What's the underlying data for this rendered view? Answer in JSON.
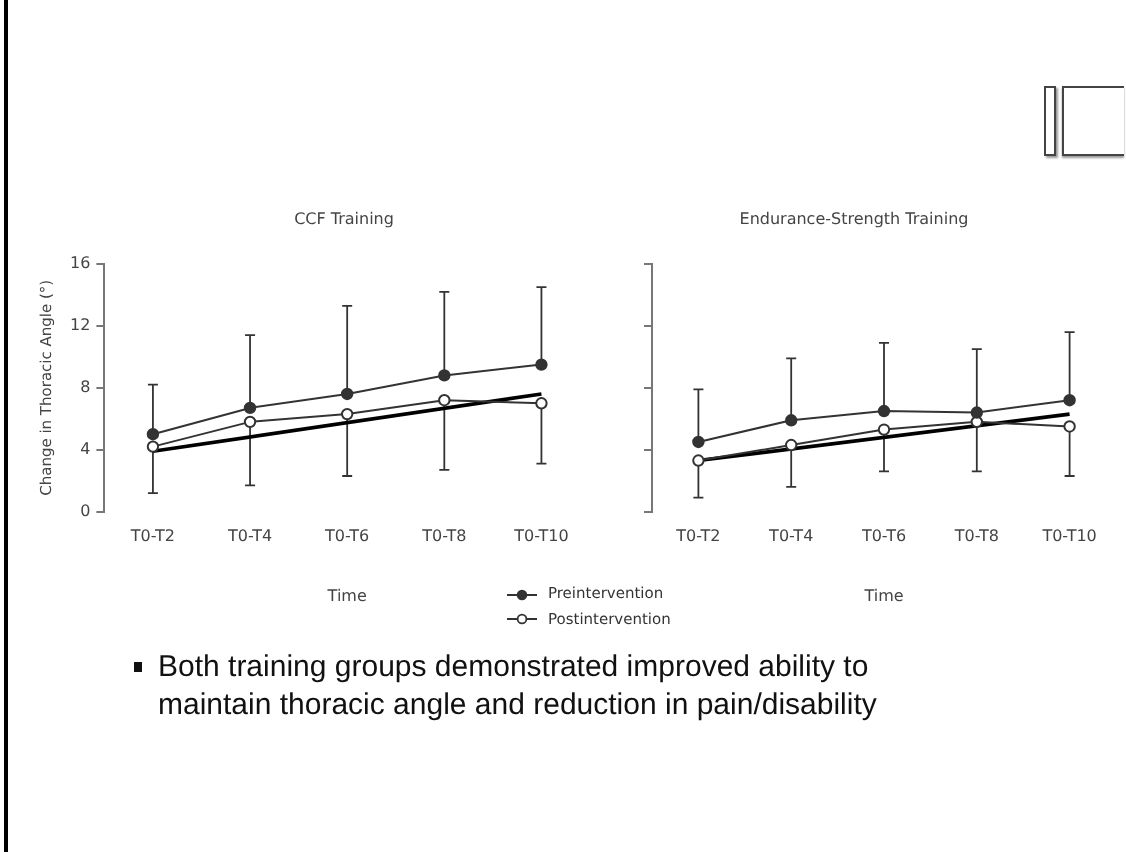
{
  "chart_data": [
    {
      "type": "line",
      "title": "CCF Training",
      "xlabel": "Time",
      "ylabel": "Change in Thoracic Angle (°)",
      "categories": [
        "T0-T2",
        "T0-T4",
        "T0-T6",
        "T0-T8",
        "T0-T10"
      ],
      "ylim": [
        0,
        16
      ],
      "yticks": [
        0,
        4,
        8,
        12,
        16
      ],
      "grid": false,
      "legend": "bottom right",
      "marker": "circle",
      "series": [
        {
          "name": "Preintervention",
          "color": "#333333",
          "values": [
            5.0,
            6.7,
            7.6,
            8.8,
            9.5
          ],
          "errors": [
            [
              5.0,
              8.2
            ],
            [
              6.7,
              11.4
            ],
            [
              7.6,
              13.3
            ],
            [
              8.8,
              14.2
            ],
            [
              9.5,
              14.5
            ]
          ]
        },
        {
          "name": "Postintervention",
          "color": "#333333",
          "colors": [
            "#ffffff",
            "#ffffff",
            "#ffffff",
            "#ffffff",
            "#ffffff"
          ],
          "values": [
            4.2,
            5.8,
            6.3,
            7.2,
            7.0
          ],
          "errors": [
            [
              1.2,
              4.2
            ],
            [
              1.7,
              5.8
            ],
            [
              2.3,
              6.3
            ],
            [
              2.7,
              7.2
            ],
            [
              3.1,
              7.0
            ]
          ]
        },
        {
          "type": "line",
          "color": "#000000",
          "marker": "none",
          "x": [
            "T0-T2",
            "T0-T10"
          ],
          "values": [
            3.9,
            7.6
          ]
        }
      ],
      "annotations": [
        "Both training groups demonstrated improved ability to maintain thoracic angle and reduction in pain/disability"
      ]
    },
    {
      "type": "line",
      "title": "Endurance-Strength Training",
      "xlabel": "Time",
      "categories": [
        "T0-T2",
        "T0-T4",
        "T0-T6",
        "T0-T8",
        "T0-T10"
      ],
      "ylim": [
        0,
        16
      ],
      "yticks": [
        0,
        4,
        8,
        12,
        16
      ],
      "tick_labels": "x",
      "grid": false,
      "marker": "circle",
      "series": [
        {
          "color": "#333333",
          "values": [
            4.5,
            5.9,
            6.5,
            6.4,
            7.2
          ],
          "errors": [
            [
              4.5,
              7.9
            ],
            [
              5.9,
              9.9
            ],
            [
              6.5,
              10.9
            ],
            [
              6.4,
              10.5
            ],
            [
              7.2,
              11.6
            ]
          ]
        },
        {
          "color": "#333333",
          "colors": [
            "#ffffff",
            "#ffffff",
            "#ffffff",
            "#ffffff",
            "#ffffff"
          ],
          "values": [
            3.3,
            4.3,
            5.3,
            5.8,
            5.5
          ],
          "errors": [
            [
              0.9,
              3.3
            ],
            [
              1.6,
              4.3
            ],
            [
              2.6,
              5.3
            ],
            [
              2.6,
              5.8
            ],
            [
              2.3,
              5.5
            ]
          ]
        },
        {
          "type": "line",
          "color": "#000000",
          "marker": "none",
          "x": [
            "T0-T2",
            "T0-T10"
          ],
          "values": [
            3.3,
            6.3
          ]
        }
      ]
    }
  ]
}
